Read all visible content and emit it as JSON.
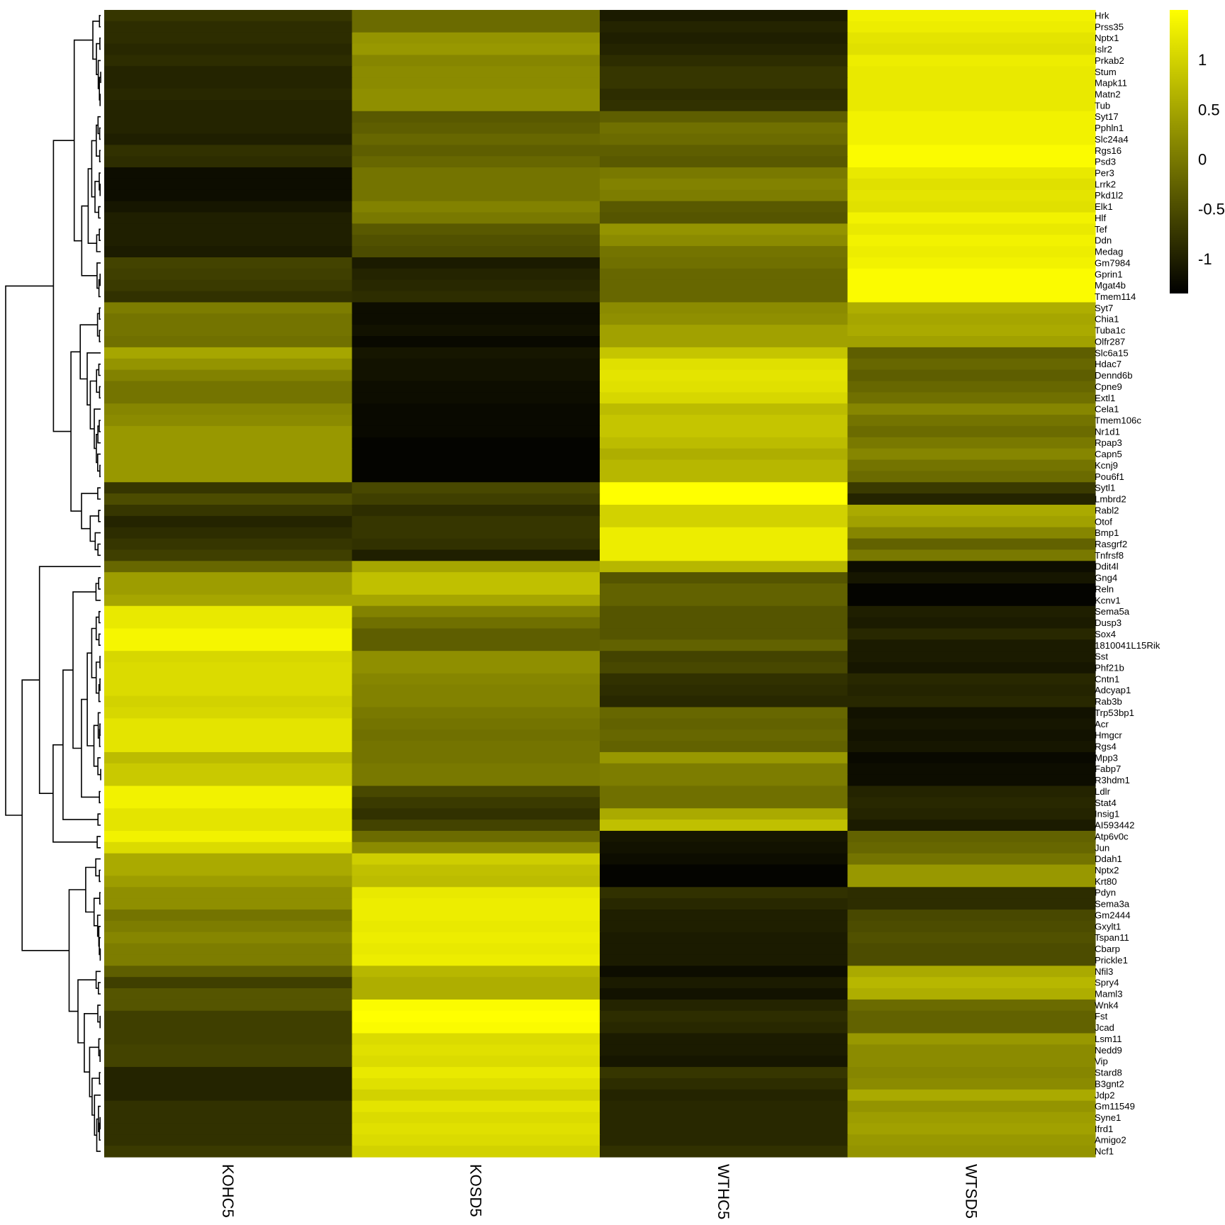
{
  "chart_data": {
    "type": "heatmap",
    "columns": [
      "KOHC5",
      "KOSD5",
      "WTHC5",
      "WTSD5"
    ],
    "rows": [
      {
        "gene": "Hrk",
        "values": [
          -0.75,
          -0.15,
          -1.05,
          1.35
        ]
      },
      {
        "gene": "Prss35",
        "values": [
          -0.85,
          -0.15,
          -0.95,
          1.3
        ]
      },
      {
        "gene": "Nptx1",
        "values": [
          -0.85,
          0.3,
          -1.0,
          1.2
        ]
      },
      {
        "gene": "Islr2",
        "values": [
          -0.9,
          0.35,
          -0.95,
          1.15
        ]
      },
      {
        "gene": "Prkab2",
        "values": [
          -0.85,
          0.15,
          -0.85,
          1.3
        ]
      },
      {
        "gene": "Stum",
        "values": [
          -0.95,
          0.2,
          -0.75,
          1.25
        ]
      },
      {
        "gene": "Mapk11",
        "values": [
          -0.95,
          0.2,
          -0.75,
          1.25
        ]
      },
      {
        "gene": "Matn2",
        "values": [
          -0.9,
          0.25,
          -0.85,
          1.25
        ]
      },
      {
        "gene": "Tub",
        "values": [
          -0.95,
          0.25,
          -0.8,
          1.25
        ]
      },
      {
        "gene": "Syt17",
        "values": [
          -0.95,
          -0.35,
          -0.3,
          1.35
        ]
      },
      {
        "gene": "Pphln1",
        "values": [
          -0.95,
          -0.3,
          -0.1,
          1.35
        ]
      },
      {
        "gene": "Slc24a4",
        "values": [
          -1.0,
          -0.2,
          -0.15,
          1.35
        ]
      },
      {
        "gene": "Rgs16",
        "values": [
          -0.8,
          -0.3,
          -0.3,
          1.45
        ]
      },
      {
        "gene": "Psd3",
        "values": [
          -0.85,
          -0.2,
          -0.35,
          1.45
        ]
      },
      {
        "gene": "Per3",
        "values": [
          -1.2,
          -0.05,
          0.0,
          1.25
        ]
      },
      {
        "gene": "Lrrk2",
        "values": [
          -1.2,
          -0.05,
          0.1,
          1.15
        ]
      },
      {
        "gene": "Pkd1l2",
        "values": [
          -1.2,
          -0.05,
          0.05,
          1.2
        ]
      },
      {
        "gene": "Elk1",
        "values": [
          -1.1,
          0.1,
          -0.35,
          1.15
        ]
      },
      {
        "gene": "Hlf",
        "values": [
          -1.0,
          0.0,
          -0.4,
          1.35
        ]
      },
      {
        "gene": "Tef",
        "values": [
          -1.0,
          -0.35,
          0.3,
          1.25
        ]
      },
      {
        "gene": "Ddn",
        "values": [
          -1.0,
          -0.45,
          0.2,
          1.35
        ]
      },
      {
        "gene": "Medag",
        "values": [
          -1.05,
          -0.5,
          -0.05,
          1.3
        ]
      },
      {
        "gene": "Gm7984",
        "values": [
          -0.6,
          -1.05,
          -0.1,
          1.35
        ]
      },
      {
        "gene": "Gprin1",
        "values": [
          -0.65,
          -0.95,
          -0.2,
          1.45
        ]
      },
      {
        "gene": "Mgat4b",
        "values": [
          -0.7,
          -0.9,
          -0.2,
          1.45
        ]
      },
      {
        "gene": "Tmem114",
        "values": [
          -0.8,
          -0.85,
          -0.2,
          1.45
        ]
      },
      {
        "gene": "Syt7",
        "values": [
          0.05,
          -1.2,
          0.2,
          0.6
        ]
      },
      {
        "gene": "Chia1",
        "values": [
          -0.05,
          -1.2,
          0.25,
          0.5
        ]
      },
      {
        "gene": "Tuba1c",
        "values": [
          -0.05,
          -1.15,
          0.45,
          0.55
        ]
      },
      {
        "gene": "Olfr287",
        "values": [
          -0.1,
          -1.25,
          0.45,
          0.45
        ]
      },
      {
        "gene": "Slc6a15",
        "values": [
          0.5,
          -1.1,
          0.85,
          -0.3
        ]
      },
      {
        "gene": "Hdac7",
        "values": [
          0.3,
          -1.15,
          1.15,
          -0.2
        ]
      },
      {
        "gene": "Dennd6b",
        "values": [
          0.1,
          -1.15,
          1.2,
          -0.3
        ]
      },
      {
        "gene": "Cpne9",
        "values": [
          -0.05,
          -1.2,
          1.15,
          -0.2
        ]
      },
      {
        "gene": "Extl1",
        "values": [
          -0.05,
          -1.2,
          1.05,
          -0.1
        ]
      },
      {
        "gene": "Cela1",
        "values": [
          0.15,
          -1.25,
          0.75,
          0.15
        ]
      },
      {
        "gene": "Tmem106c",
        "values": [
          0.2,
          -1.25,
          0.85,
          -0.05
        ]
      },
      {
        "gene": "Nr1d1",
        "values": [
          0.35,
          -1.25,
          0.85,
          -0.15
        ]
      },
      {
        "gene": "Rpap3",
        "values": [
          0.35,
          -1.3,
          0.75,
          0.0
        ]
      },
      {
        "gene": "Capn5",
        "values": [
          0.35,
          -1.3,
          0.6,
          0.15
        ]
      },
      {
        "gene": "Kcnj9",
        "values": [
          0.35,
          -1.3,
          0.7,
          -0.05
        ]
      },
      {
        "gene": "Pou6f1",
        "values": [
          0.35,
          -1.3,
          0.7,
          -0.15
        ]
      },
      {
        "gene": "Sytl1",
        "values": [
          -0.75,
          -0.55,
          1.5,
          -0.7
        ]
      },
      {
        "gene": "Lmbrd2",
        "values": [
          -0.5,
          -0.65,
          1.5,
          -0.95
        ]
      },
      {
        "gene": "Rabl2",
        "values": [
          -0.75,
          -0.85,
          1.0,
          0.55
        ]
      },
      {
        "gene": "Otof",
        "values": [
          -0.95,
          -0.75,
          1.0,
          0.45
        ]
      },
      {
        "gene": "Bmp1",
        "values": [
          -0.85,
          -0.75,
          1.3,
          0.15
        ]
      },
      {
        "gene": "Rasgrf2",
        "values": [
          -0.75,
          -0.8,
          1.3,
          -0.25
        ]
      },
      {
        "gene": "Tnfrsf8",
        "values": [
          -0.65,
          -1.0,
          1.3,
          0.0
        ]
      },
      {
        "gene": "Ddit4l",
        "values": [
          -0.2,
          0.5,
          0.7,
          -1.2
        ]
      },
      {
        "gene": "Gng4",
        "values": [
          0.4,
          0.8,
          -0.4,
          -1.1
        ]
      },
      {
        "gene": "Reln",
        "values": [
          0.4,
          0.8,
          -0.25,
          -1.3
        ]
      },
      {
        "gene": "Kcnv1",
        "values": [
          0.5,
          0.5,
          -0.25,
          -1.3
        ]
      },
      {
        "gene": "Sema5a",
        "values": [
          1.25,
          0.1,
          -0.4,
          -1.0
        ]
      },
      {
        "gene": "Dusp3",
        "values": [
          1.25,
          -0.1,
          -0.4,
          -1.05
        ]
      },
      {
        "gene": "Sox4",
        "values": [
          1.4,
          -0.3,
          -0.4,
          -0.9
        ]
      },
      {
        "gene": "1810041L15Rik",
        "values": [
          1.4,
          -0.3,
          -0.25,
          -1.05
        ]
      },
      {
        "gene": "Sst",
        "values": [
          1.05,
          0.25,
          -0.6,
          -1.05
        ]
      },
      {
        "gene": "Phf21b",
        "values": [
          1.1,
          0.25,
          -0.55,
          -1.1
        ]
      },
      {
        "gene": "Cntn1",
        "values": [
          1.1,
          0.15,
          -0.8,
          -0.9
        ]
      },
      {
        "gene": "Adcyap1",
        "values": [
          1.1,
          0.1,
          -0.85,
          -0.95
        ]
      },
      {
        "gene": "Rab3b",
        "values": [
          1.0,
          0.1,
          -0.9,
          -0.9
        ]
      },
      {
        "gene": "Trp53bp1",
        "values": [
          1.05,
          0.0,
          -0.2,
          -1.15
        ]
      },
      {
        "gene": "Acr",
        "values": [
          1.2,
          -0.05,
          -0.25,
          -1.1
        ]
      },
      {
        "gene": "Hmgcr",
        "values": [
          1.2,
          -0.1,
          -0.2,
          -1.15
        ]
      },
      {
        "gene": "Rgs4",
        "values": [
          1.2,
          -0.05,
          -0.25,
          -1.1
        ]
      },
      {
        "gene": "Mpp3",
        "values": [
          0.75,
          -0.05,
          0.35,
          -1.25
        ]
      },
      {
        "gene": "Fabp7",
        "values": [
          0.9,
          0.0,
          0.05,
          -1.2
        ]
      },
      {
        "gene": "R3hdm1",
        "values": [
          0.9,
          0.0,
          0.05,
          -1.2
        ]
      },
      {
        "gene": "Ldlr",
        "values": [
          1.35,
          -0.55,
          -0.1,
          -0.95
        ]
      },
      {
        "gene": "Stat4",
        "values": [
          1.35,
          -0.7,
          -0.1,
          -0.9
        ]
      },
      {
        "gene": "Insig1",
        "values": [
          1.2,
          -0.8,
          0.55,
          -0.95
        ]
      },
      {
        "gene": "AI593442",
        "values": [
          1.2,
          -0.6,
          0.8,
          -1.05
        ]
      },
      {
        "gene": "Atp6v0c",
        "values": [
          1.35,
          -0.15,
          -1.1,
          -0.25
        ]
      },
      {
        "gene": "Jun",
        "values": [
          1.1,
          0.2,
          -1.15,
          -0.2
        ]
      },
      {
        "gene": "Ddah1",
        "values": [
          0.55,
          0.95,
          -1.2,
          -0.05
        ]
      },
      {
        "gene": "Nptx2",
        "values": [
          0.55,
          0.8,
          -1.3,
          0.35
        ]
      },
      {
        "gene": "Krt80",
        "values": [
          0.4,
          0.75,
          -1.3,
          0.35
        ]
      },
      {
        "gene": "Pdyn",
        "values": [
          0.25,
          1.25,
          -0.8,
          -0.85
        ]
      },
      {
        "gene": "Sema3a",
        "values": [
          0.25,
          1.3,
          -0.9,
          -0.85
        ]
      },
      {
        "gene": "Gm2444",
        "values": [
          -0.05,
          1.3,
          -1.0,
          -0.55
        ]
      },
      {
        "gene": "Gxylt1",
        "values": [
          0.05,
          1.25,
          -1.0,
          -0.5
        ]
      },
      {
        "gene": "Tspan11",
        "values": [
          0.15,
          1.3,
          -1.05,
          -0.45
        ]
      },
      {
        "gene": "Cbarp",
        "values": [
          0.05,
          1.25,
          -1.05,
          -0.5
        ]
      },
      {
        "gene": "Prickle1",
        "values": [
          0.05,
          1.3,
          -1.05,
          -0.5
        ]
      },
      {
        "gene": "Nfil3",
        "values": [
          -0.3,
          0.7,
          -1.2,
          0.55
        ]
      },
      {
        "gene": "Spry4",
        "values": [
          -0.65,
          0.6,
          -1.05,
          0.7
        ]
      },
      {
        "gene": "Maml3",
        "values": [
          -0.4,
          0.6,
          -1.15,
          0.6
        ]
      },
      {
        "gene": "Wnk4",
        "values": [
          -0.4,
          1.45,
          -0.95,
          -0.15
        ]
      },
      {
        "gene": "Fst",
        "values": [
          -0.65,
          1.5,
          -0.85,
          -0.25
        ]
      },
      {
        "gene": "Jcad",
        "values": [
          -0.65,
          1.45,
          -0.9,
          -0.25
        ]
      },
      {
        "gene": "Lsm11",
        "values": [
          -0.65,
          1.1,
          -1.05,
          0.35
        ]
      },
      {
        "gene": "Nedd9",
        "values": [
          -0.6,
          1.15,
          -1.05,
          0.2
        ]
      },
      {
        "gene": "Vip",
        "values": [
          -0.6,
          1.1,
          -1.1,
          0.2
        ]
      },
      {
        "gene": "Stard8",
        "values": [
          -0.95,
          1.25,
          -0.75,
          0.15
        ]
      },
      {
        "gene": "B3gnt2",
        "values": [
          -0.95,
          1.15,
          -0.85,
          0.2
        ]
      },
      {
        "gene": "Jdp2",
        "values": [
          -0.95,
          1.0,
          -0.95,
          0.55
        ]
      },
      {
        "gene": "Gm11549",
        "values": [
          -0.8,
          1.2,
          -0.9,
          0.3
        ]
      },
      {
        "gene": "Syne1",
        "values": [
          -0.8,
          1.1,
          -0.9,
          0.4
        ]
      },
      {
        "gene": "Ifrd1",
        "values": [
          -0.8,
          1.15,
          -0.9,
          0.45
        ]
      },
      {
        "gene": "Amigo2",
        "values": [
          -0.8,
          1.1,
          -0.9,
          0.35
        ]
      },
      {
        "gene": "Ncf1",
        "values": [
          -0.7,
          1.0,
          -0.8,
          0.3
        ]
      }
    ],
    "value_range": [
      -1.35,
      1.5
    ],
    "colorscale": [
      "#000000",
      "#ffff00"
    ],
    "legend": {
      "placement": "top-right",
      "ticks": [
        {
          "value": 1,
          "label": "1"
        },
        {
          "value": 0.5,
          "label": "0.5"
        },
        {
          "value": 0,
          "label": "0"
        },
        {
          "value": -0.5,
          "label": "-0.5"
        },
        {
          "value": -1,
          "label": "-1"
        }
      ]
    },
    "row_dendrogram": true,
    "grid": false
  }
}
